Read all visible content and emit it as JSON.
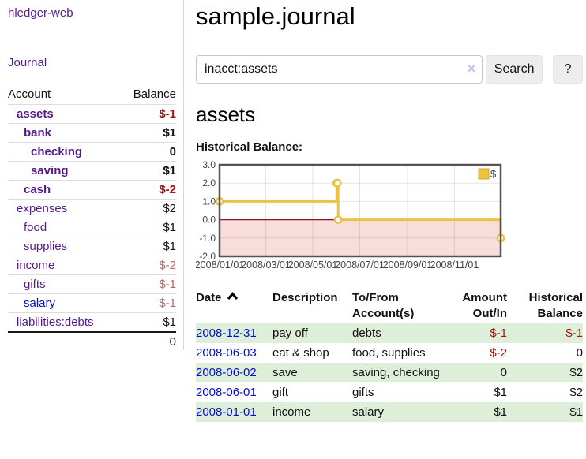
{
  "app": {
    "brand": "hledger-web"
  },
  "sidebar": {
    "nav_journal": "Journal",
    "accounts": {
      "col_account": "Account",
      "col_balance": "Balance",
      "rows": [
        {
          "name": "assets",
          "indent": 0,
          "balance": "$-1",
          "bold": true,
          "neg": true
        },
        {
          "name": "bank",
          "indent": 1,
          "balance": "$1",
          "bold": true
        },
        {
          "name": "checking",
          "indent": 2,
          "balance": "0",
          "bold": true
        },
        {
          "name": "saving",
          "indent": 2,
          "balance": "$1",
          "bold": true
        },
        {
          "name": "cash",
          "indent": 1,
          "balance": "$-2",
          "bold": true,
          "neg": true
        },
        {
          "name": "expenses",
          "indent": 0,
          "balance": "$2"
        },
        {
          "name": "food",
          "indent": 1,
          "balance": "$1"
        },
        {
          "name": "supplies",
          "indent": 1,
          "balance": "$1"
        },
        {
          "name": "income",
          "indent": 0,
          "balance": "$-2",
          "muted": true
        },
        {
          "name": "gifts",
          "indent": 1,
          "balance": "$-1",
          "muted": true
        },
        {
          "name": "salary",
          "indent": 1,
          "balance": "$-1",
          "muted": true,
          "blue": true
        },
        {
          "name": "liabilities:debts",
          "indent": 0,
          "balance": "$1"
        }
      ],
      "total": "0"
    }
  },
  "main": {
    "title": "sample.journal",
    "search": {
      "value": "inacct:assets",
      "clear_icon": "×",
      "search_button": "Search",
      "help_button": "?"
    },
    "heading": "assets",
    "chart_title": "Historical Balance:"
  },
  "chart_data": {
    "type": "line",
    "step": true,
    "title": "Historical Balance",
    "legend": [
      {
        "label": "$",
        "color": "#edc240"
      }
    ],
    "legend_position": "top-right",
    "series": [
      {
        "name": "$",
        "color": "#edc240",
        "points": [
          [
            "2008-01-01",
            1
          ],
          [
            "2008-06-01",
            2
          ],
          [
            "2008-06-02",
            2
          ],
          [
            "2008-06-03",
            0
          ],
          [
            "2008-12-31",
            -1
          ]
        ]
      }
    ],
    "x_range": [
      "2008-01-01",
      "2008-12-31"
    ],
    "x_ticks": [
      "2008/01/01",
      "2008/03/01",
      "2008/05/01",
      "2008/07/01",
      "2008/09/01",
      "2008/11/01"
    ],
    "y_ticks": [
      3.0,
      2.0,
      1.0,
      0.0,
      -1.0,
      -2.0
    ],
    "ylim": [
      -2,
      3
    ],
    "grid": true,
    "negative_region_color": "#f9dcdc",
    "zero_line_color": "#8b1a1a",
    "border_color": "#545454",
    "tick_text_color": "#454545"
  },
  "register": {
    "columns": [
      {
        "label": "Date",
        "sort": "asc"
      },
      {
        "label": "Description"
      },
      {
        "label": "To/From Account(s)"
      },
      {
        "label": "Amount Out/In"
      },
      {
        "label": "Historical Balance"
      }
    ],
    "rows": [
      {
        "date": "2008-12-31",
        "description": "pay off",
        "accounts": "debts",
        "amount": "$-1",
        "amount_neg": true,
        "balance": "$-1",
        "balance_neg": true
      },
      {
        "date": "2008-06-03",
        "description": "eat & shop",
        "accounts": "food, supplies",
        "amount": "$-2",
        "amount_neg": true,
        "balance": "0"
      },
      {
        "date": "2008-06-02",
        "description": "save",
        "accounts": "saving, checking",
        "amount": "0",
        "balance": "$2"
      },
      {
        "date": "2008-06-01",
        "description": "gift",
        "accounts": "gifts",
        "amount": "$1",
        "balance": "$2"
      },
      {
        "date": "2008-01-01",
        "description": "income",
        "accounts": "salary",
        "amount": "$1",
        "balance": "$1"
      }
    ]
  },
  "colors": {
    "link_purple": "#551a8b",
    "link_blue": "#0010d0",
    "negative_red": "#a31515",
    "muted_negative": "#b36b6b",
    "row_green": "#ddeed9",
    "chart_gold": "#edc240",
    "chart_negative_region": "#f9dcdc",
    "chart_zero_line": "#8b1a1a"
  }
}
